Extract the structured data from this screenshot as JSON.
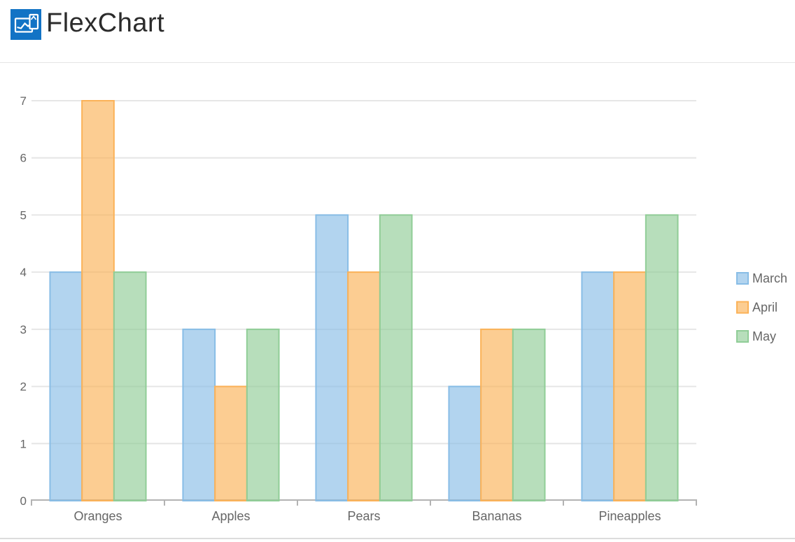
{
  "header": {
    "title": "FlexChart",
    "logo_color": "#1273c5"
  },
  "chart_data": {
    "type": "bar",
    "title": "",
    "xlabel": "",
    "ylabel": "",
    "categories": [
      "Oranges",
      "Apples",
      "Pears",
      "Bananas",
      "Pineapples"
    ],
    "series": [
      {
        "name": "March",
        "color": "#88bde6",
        "values": [
          4,
          3,
          5,
          2,
          4
        ]
      },
      {
        "name": "April",
        "color": "#fbb258",
        "values": [
          7,
          2,
          4,
          3,
          4
        ]
      },
      {
        "name": "May",
        "color": "#90cd97",
        "values": [
          4,
          3,
          5,
          3,
          5
        ]
      }
    ],
    "ylim": [
      0,
      7
    ],
    "y_ticks": [
      0,
      1,
      2,
      3,
      4,
      5,
      6,
      7
    ],
    "grid": true,
    "legend_position": "right",
    "fill_opacity": 0.65,
    "text_color": "#666666",
    "gridline_color": "#e6e6e6",
    "axis_line_color": "#b3b3b3"
  }
}
